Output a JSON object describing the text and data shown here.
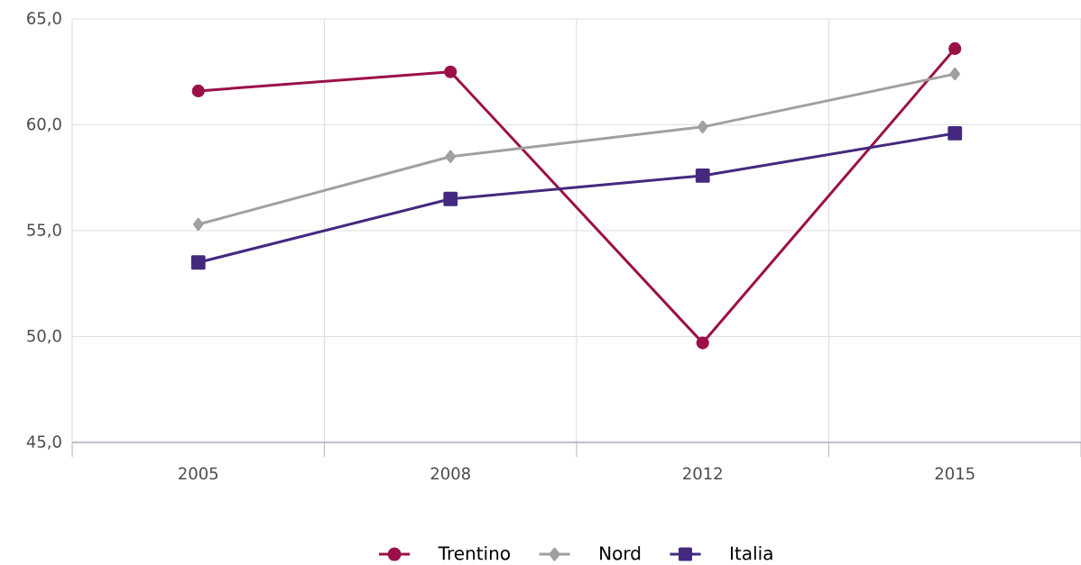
{
  "chart_data": {
    "type": "line",
    "categories": [
      "2005",
      "2008",
      "2012",
      "2015"
    ],
    "series": [
      {
        "name": "Trentino",
        "color": "#9b1048",
        "marker": "circle",
        "values": [
          61.6,
          62.5,
          49.7,
          63.6
        ]
      },
      {
        "name": "Nord",
        "color": "#a0a0a0",
        "marker": "diamond",
        "values": [
          55.3,
          58.5,
          59.9,
          62.4
        ]
      },
      {
        "name": "Italia",
        "color": "#44297f",
        "marker": "square",
        "values": [
          53.5,
          56.5,
          57.6,
          59.6
        ]
      }
    ],
    "ylim": [
      45,
      65
    ],
    "yticks": [
      {
        "value": 45,
        "label": "45,0"
      },
      {
        "value": 50,
        "label": "50,0"
      },
      {
        "value": 55,
        "label": "55,0"
      },
      {
        "value": 60,
        "label": "60,0"
      },
      {
        "value": 65,
        "label": "65,0"
      }
    ],
    "grid": true,
    "legend": "bottom"
  }
}
